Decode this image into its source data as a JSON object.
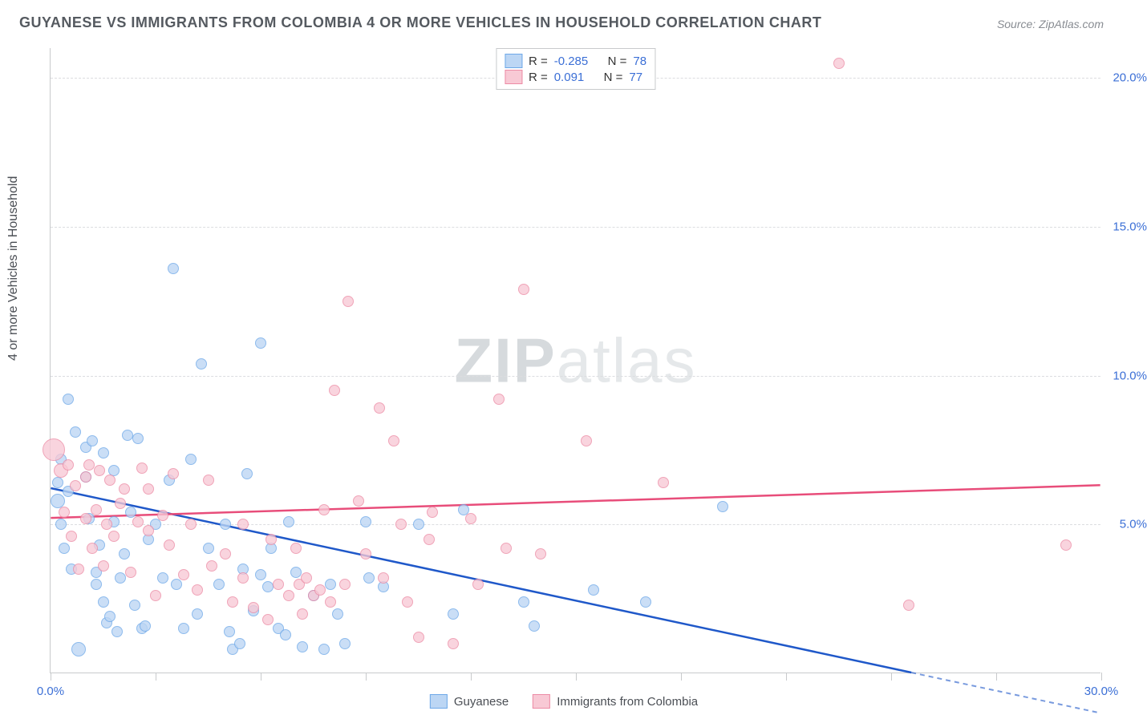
{
  "title": "GUYANESE VS IMMIGRANTS FROM COLOMBIA 4 OR MORE VEHICLES IN HOUSEHOLD CORRELATION CHART",
  "source": "Source: ZipAtlas.com",
  "y_axis_label": "4 or more Vehicles in Household",
  "watermark": {
    "bold": "ZIP",
    "rest": "atlas"
  },
  "chart": {
    "type": "scatter",
    "background_color": "#ffffff",
    "grid_color": "#dcdde0",
    "axis_color": "#c8cacc",
    "xlim": [
      0,
      30
    ],
    "ylim": [
      0,
      21
    ],
    "y_ticks": [
      5.0,
      10.0,
      15.0,
      20.0
    ],
    "y_tick_labels": [
      "5.0%",
      "10.0%",
      "15.0%",
      "20.0%"
    ],
    "x_tick_positions": [
      0,
      3,
      6,
      9,
      12,
      15,
      18,
      21,
      24,
      27,
      30
    ],
    "x_tick_labels": {
      "0": "0.0%",
      "30": "30.0%"
    }
  },
  "series": [
    {
      "id": "guyanese",
      "label": "Guyanese",
      "fill": "#bcd6f4",
      "stroke": "#6ea8e8",
      "trend_color": "#1f58c9",
      "R": "-0.285",
      "N": "78",
      "trend": {
        "x1": 0,
        "y1": 6.2,
        "x2": 24.6,
        "y2": 0.0,
        "dashed_to_x": 30
      },
      "points": [
        {
          "x": 0.2,
          "y": 5.8,
          "r": 9
        },
        {
          "x": 0.2,
          "y": 6.4,
          "r": 7
        },
        {
          "x": 0.3,
          "y": 7.2,
          "r": 7
        },
        {
          "x": 0.3,
          "y": 5.0,
          "r": 7
        },
        {
          "x": 0.4,
          "y": 4.2,
          "r": 7
        },
        {
          "x": 0.5,
          "y": 6.1,
          "r": 7
        },
        {
          "x": 0.5,
          "y": 9.2,
          "r": 7
        },
        {
          "x": 0.6,
          "y": 3.5,
          "r": 7
        },
        {
          "x": 0.7,
          "y": 8.1,
          "r": 7
        },
        {
          "x": 0.8,
          "y": 0.8,
          "r": 9
        },
        {
          "x": 1.0,
          "y": 7.6,
          "r": 7
        },
        {
          "x": 1.0,
          "y": 6.6,
          "r": 7
        },
        {
          "x": 1.1,
          "y": 5.2,
          "r": 7
        },
        {
          "x": 1.2,
          "y": 7.8,
          "r": 7
        },
        {
          "x": 1.3,
          "y": 3.0,
          "r": 7
        },
        {
          "x": 1.3,
          "y": 3.4,
          "r": 7
        },
        {
          "x": 1.4,
          "y": 4.3,
          "r": 7
        },
        {
          "x": 1.5,
          "y": 7.4,
          "r": 7
        },
        {
          "x": 1.5,
          "y": 2.4,
          "r": 7
        },
        {
          "x": 1.6,
          "y": 1.7,
          "r": 7
        },
        {
          "x": 1.7,
          "y": 1.9,
          "r": 7
        },
        {
          "x": 1.8,
          "y": 5.1,
          "r": 7
        },
        {
          "x": 1.8,
          "y": 6.8,
          "r": 7
        },
        {
          "x": 1.9,
          "y": 1.4,
          "r": 7
        },
        {
          "x": 2.0,
          "y": 3.2,
          "r": 7
        },
        {
          "x": 2.1,
          "y": 4.0,
          "r": 7
        },
        {
          "x": 2.2,
          "y": 8.0,
          "r": 7
        },
        {
          "x": 2.3,
          "y": 5.4,
          "r": 7
        },
        {
          "x": 2.4,
          "y": 2.3,
          "r": 7
        },
        {
          "x": 2.5,
          "y": 7.9,
          "r": 7
        },
        {
          "x": 2.6,
          "y": 1.5,
          "r": 7
        },
        {
          "x": 2.7,
          "y": 1.6,
          "r": 7
        },
        {
          "x": 2.8,
          "y": 4.5,
          "r": 7
        },
        {
          "x": 3.0,
          "y": 5.0,
          "r": 7
        },
        {
          "x": 3.2,
          "y": 3.2,
          "r": 7
        },
        {
          "x": 3.4,
          "y": 6.5,
          "r": 7
        },
        {
          "x": 3.5,
          "y": 13.6,
          "r": 7
        },
        {
          "x": 3.6,
          "y": 3.0,
          "r": 7
        },
        {
          "x": 3.8,
          "y": 1.5,
          "r": 7
        },
        {
          "x": 4.0,
          "y": 7.2,
          "r": 7
        },
        {
          "x": 4.2,
          "y": 2.0,
          "r": 7
        },
        {
          "x": 4.3,
          "y": 10.4,
          "r": 7
        },
        {
          "x": 4.5,
          "y": 4.2,
          "r": 7
        },
        {
          "x": 4.8,
          "y": 3.0,
          "r": 7
        },
        {
          "x": 5.0,
          "y": 5.0,
          "r": 7
        },
        {
          "x": 5.1,
          "y": 1.4,
          "r": 7
        },
        {
          "x": 5.2,
          "y": 0.8,
          "r": 7
        },
        {
          "x": 5.4,
          "y": 1.0,
          "r": 7
        },
        {
          "x": 5.5,
          "y": 3.5,
          "r": 7
        },
        {
          "x": 5.6,
          "y": 6.7,
          "r": 7
        },
        {
          "x": 5.8,
          "y": 2.1,
          "r": 7
        },
        {
          "x": 6.0,
          "y": 3.3,
          "r": 7
        },
        {
          "x": 6.0,
          "y": 11.1,
          "r": 7
        },
        {
          "x": 6.2,
          "y": 2.9,
          "r": 7
        },
        {
          "x": 6.3,
          "y": 4.2,
          "r": 7
        },
        {
          "x": 6.5,
          "y": 1.5,
          "r": 7
        },
        {
          "x": 6.7,
          "y": 1.3,
          "r": 7
        },
        {
          "x": 6.8,
          "y": 5.1,
          "r": 7
        },
        {
          "x": 7.0,
          "y": 3.4,
          "r": 7
        },
        {
          "x": 7.2,
          "y": 0.9,
          "r": 7
        },
        {
          "x": 7.5,
          "y": 2.6,
          "r": 7
        },
        {
          "x": 7.8,
          "y": 0.8,
          "r": 7
        },
        {
          "x": 8.0,
          "y": 3.0,
          "r": 7
        },
        {
          "x": 8.2,
          "y": 2.0,
          "r": 7
        },
        {
          "x": 8.4,
          "y": 1.0,
          "r": 7
        },
        {
          "x": 9.0,
          "y": 5.1,
          "r": 7
        },
        {
          "x": 9.1,
          "y": 3.2,
          "r": 7
        },
        {
          "x": 9.5,
          "y": 2.9,
          "r": 7
        },
        {
          "x": 10.5,
          "y": 5.0,
          "r": 7
        },
        {
          "x": 11.5,
          "y": 2.0,
          "r": 7
        },
        {
          "x": 11.8,
          "y": 5.5,
          "r": 7
        },
        {
          "x": 13.5,
          "y": 2.4,
          "r": 7
        },
        {
          "x": 13.8,
          "y": 1.6,
          "r": 7
        },
        {
          "x": 15.5,
          "y": 2.8,
          "r": 7
        },
        {
          "x": 17.0,
          "y": 2.4,
          "r": 7
        },
        {
          "x": 19.2,
          "y": 5.6,
          "r": 7
        }
      ]
    },
    {
      "id": "colombia",
      "label": "Immigrants from Colombia",
      "fill": "#f8c9d5",
      "stroke": "#ec8ba5",
      "trend_color": "#e84d7a",
      "R": "0.091",
      "N": "77",
      "trend": {
        "x1": 0,
        "y1": 5.2,
        "x2": 30,
        "y2": 6.3
      },
      "points": [
        {
          "x": 0.1,
          "y": 7.5,
          "r": 14
        },
        {
          "x": 0.3,
          "y": 6.8,
          "r": 9
        },
        {
          "x": 0.4,
          "y": 5.4,
          "r": 7
        },
        {
          "x": 0.5,
          "y": 7.0,
          "r": 7
        },
        {
          "x": 0.6,
          "y": 4.6,
          "r": 7
        },
        {
          "x": 0.7,
          "y": 6.3,
          "r": 7
        },
        {
          "x": 0.8,
          "y": 3.5,
          "r": 7
        },
        {
          "x": 1.0,
          "y": 5.2,
          "r": 7
        },
        {
          "x": 1.0,
          "y": 6.6,
          "r": 7
        },
        {
          "x": 1.1,
          "y": 7.0,
          "r": 7
        },
        {
          "x": 1.2,
          "y": 4.2,
          "r": 7
        },
        {
          "x": 1.3,
          "y": 5.5,
          "r": 7
        },
        {
          "x": 1.4,
          "y": 6.8,
          "r": 7
        },
        {
          "x": 1.5,
          "y": 3.6,
          "r": 7
        },
        {
          "x": 1.6,
          "y": 5.0,
          "r": 7
        },
        {
          "x": 1.7,
          "y": 6.5,
          "r": 7
        },
        {
          "x": 1.8,
          "y": 4.6,
          "r": 7
        },
        {
          "x": 2.0,
          "y": 5.7,
          "r": 7
        },
        {
          "x": 2.1,
          "y": 6.2,
          "r": 7
        },
        {
          "x": 2.3,
          "y": 3.4,
          "r": 7
        },
        {
          "x": 2.5,
          "y": 5.1,
          "r": 7
        },
        {
          "x": 2.6,
          "y": 6.9,
          "r": 7
        },
        {
          "x": 2.8,
          "y": 4.8,
          "r": 7
        },
        {
          "x": 2.8,
          "y": 6.2,
          "r": 7
        },
        {
          "x": 3.0,
          "y": 2.6,
          "r": 7
        },
        {
          "x": 3.2,
          "y": 5.3,
          "r": 7
        },
        {
          "x": 3.4,
          "y": 4.3,
          "r": 7
        },
        {
          "x": 3.5,
          "y": 6.7,
          "r": 7
        },
        {
          "x": 3.8,
          "y": 3.3,
          "r": 7
        },
        {
          "x": 4.0,
          "y": 5.0,
          "r": 7
        },
        {
          "x": 4.2,
          "y": 2.8,
          "r": 7
        },
        {
          "x": 4.5,
          "y": 6.5,
          "r": 7
        },
        {
          "x": 4.6,
          "y": 3.6,
          "r": 7
        },
        {
          "x": 5.0,
          "y": 4.0,
          "r": 7
        },
        {
          "x": 5.2,
          "y": 2.4,
          "r": 7
        },
        {
          "x": 5.5,
          "y": 3.2,
          "r": 7
        },
        {
          "x": 5.5,
          "y": 5.0,
          "r": 7
        },
        {
          "x": 5.8,
          "y": 2.2,
          "r": 7
        },
        {
          "x": 6.2,
          "y": 1.8,
          "r": 7
        },
        {
          "x": 6.3,
          "y": 4.5,
          "r": 7
        },
        {
          "x": 6.5,
          "y": 3.0,
          "r": 7
        },
        {
          "x": 6.8,
          "y": 2.6,
          "r": 7
        },
        {
          "x": 7.0,
          "y": 4.2,
          "r": 7
        },
        {
          "x": 7.1,
          "y": 3.0,
          "r": 7
        },
        {
          "x": 7.2,
          "y": 2.0,
          "r": 7
        },
        {
          "x": 7.3,
          "y": 3.2,
          "r": 7
        },
        {
          "x": 7.5,
          "y": 2.6,
          "r": 7
        },
        {
          "x": 7.7,
          "y": 2.8,
          "r": 7
        },
        {
          "x": 7.8,
          "y": 5.5,
          "r": 7
        },
        {
          "x": 8.0,
          "y": 2.4,
          "r": 7
        },
        {
          "x": 8.1,
          "y": 9.5,
          "r": 7
        },
        {
          "x": 8.4,
          "y": 3.0,
          "r": 7
        },
        {
          "x": 8.5,
          "y": 12.5,
          "r": 7
        },
        {
          "x": 8.8,
          "y": 5.8,
          "r": 7
        },
        {
          "x": 9.0,
          "y": 4.0,
          "r": 7
        },
        {
          "x": 9.4,
          "y": 8.9,
          "r": 7
        },
        {
          "x": 9.5,
          "y": 3.2,
          "r": 7
        },
        {
          "x": 9.8,
          "y": 7.8,
          "r": 7
        },
        {
          "x": 10.0,
          "y": 5.0,
          "r": 7
        },
        {
          "x": 10.2,
          "y": 2.4,
          "r": 7
        },
        {
          "x": 10.5,
          "y": 1.2,
          "r": 7
        },
        {
          "x": 10.8,
          "y": 4.5,
          "r": 7
        },
        {
          "x": 10.9,
          "y": 5.4,
          "r": 7
        },
        {
          "x": 11.5,
          "y": 1.0,
          "r": 7
        },
        {
          "x": 12.0,
          "y": 5.2,
          "r": 7
        },
        {
          "x": 12.2,
          "y": 3.0,
          "r": 7
        },
        {
          "x": 12.8,
          "y": 9.2,
          "r": 7
        },
        {
          "x": 13.0,
          "y": 4.2,
          "r": 7
        },
        {
          "x": 13.5,
          "y": 12.9,
          "r": 7
        },
        {
          "x": 14.0,
          "y": 4.0,
          "r": 7
        },
        {
          "x": 15.3,
          "y": 7.8,
          "r": 7
        },
        {
          "x": 17.5,
          "y": 6.4,
          "r": 7
        },
        {
          "x": 22.5,
          "y": 20.5,
          "r": 7
        },
        {
          "x": 24.5,
          "y": 2.3,
          "r": 7
        },
        {
          "x": 29.0,
          "y": 4.3,
          "r": 7
        }
      ]
    }
  ],
  "stats_legend": {
    "r_prefix": "R = ",
    "n_prefix": "N = "
  },
  "bottom_legend": {
    "items": [
      {
        "series": 0
      },
      {
        "series": 1
      }
    ]
  }
}
